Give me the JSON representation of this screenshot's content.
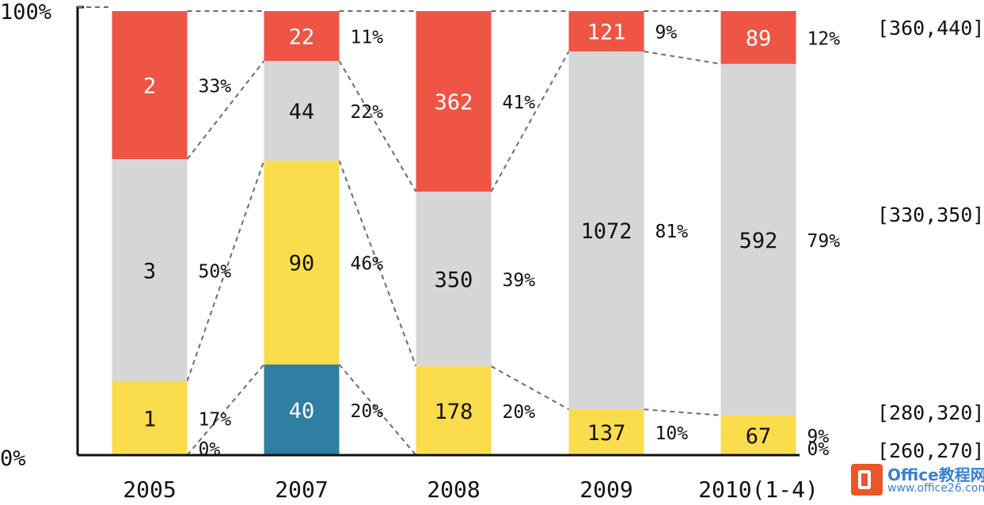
{
  "chart_data": {
    "type": "bar",
    "stacked": "percent",
    "ylim": [
      0,
      100
    ],
    "y_ticks": [
      "0%",
      "100%"
    ],
    "categories": [
      "2005",
      "2007",
      "2008",
      "2009",
      "2010(1-4)"
    ],
    "series": [
      {
        "name": "[260,270]",
        "color": "#2e7fa2",
        "values": [
          0,
          40,
          0,
          0,
          0
        ]
      },
      {
        "name": "[280,320]",
        "color": "#fbdc4c",
        "values": [
          1,
          90,
          178,
          137,
          67
        ]
      },
      {
        "name": "[330,350]",
        "color": "#d6d6d6",
        "values": [
          3,
          44,
          350,
          1072,
          592
        ]
      },
      {
        "name": "[360,440]",
        "color": "#ee5544",
        "values": [
          2,
          22,
          362,
          121,
          89
        ]
      }
    ],
    "percent_labels": [
      [
        "0%",
        "17%",
        "50%",
        "33%"
      ],
      [
        "20%",
        "46%",
        "22%",
        "11%"
      ],
      [
        "",
        "20%",
        "39%",
        "41%"
      ],
      [
        "",
        "10%",
        "81%",
        "9%"
      ],
      [
        "0%",
        "9%",
        "79%",
        "12%"
      ]
    ],
    "legend_position": "right"
  },
  "watermark": {
    "title": "Office教程网",
    "url": "www.office26.com"
  }
}
